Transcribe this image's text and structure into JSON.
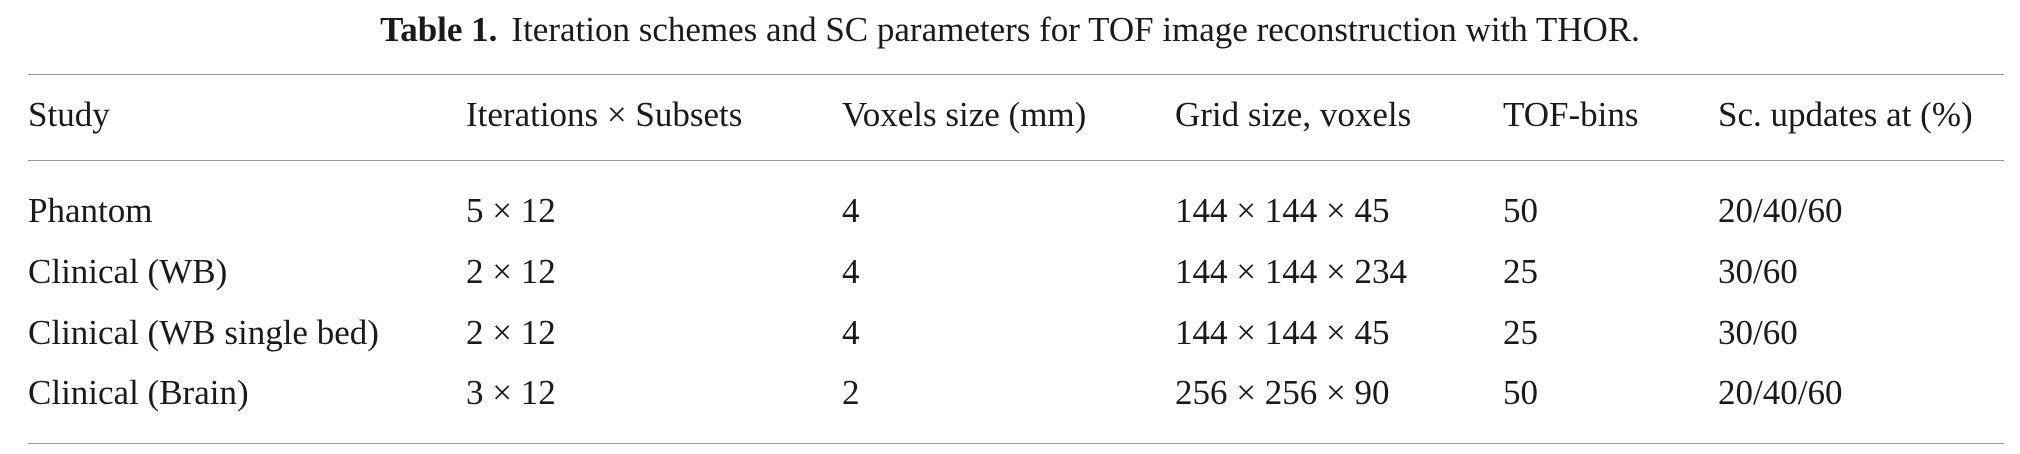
{
  "caption": {
    "label": "Table 1.",
    "text": "Iteration schemes and SC parameters for TOF image reconstruction with THOR."
  },
  "table": {
    "headers": [
      "Study",
      "Iterations × Subsets",
      "Voxels size (mm)",
      "Grid size, voxels",
      "TOF-bins",
      "Sc. updates at (%)"
    ],
    "rows": [
      [
        "Phantom",
        "5 × 12",
        "4",
        "144 × 144 × 45",
        "50",
        "20/40/60"
      ],
      [
        "Clinical (WB)",
        "2 × 12",
        "4",
        "144 × 144 × 234",
        "25",
        "30/60"
      ],
      [
        "Clinical (WB single bed)",
        "2 × 12",
        "4",
        "144 × 144 × 45",
        "25",
        "30/60"
      ],
      [
        "Clinical (Brain)",
        "3 × 12",
        "2",
        "256 × 256 × 90",
        "50",
        "20/40/60"
      ]
    ]
  }
}
